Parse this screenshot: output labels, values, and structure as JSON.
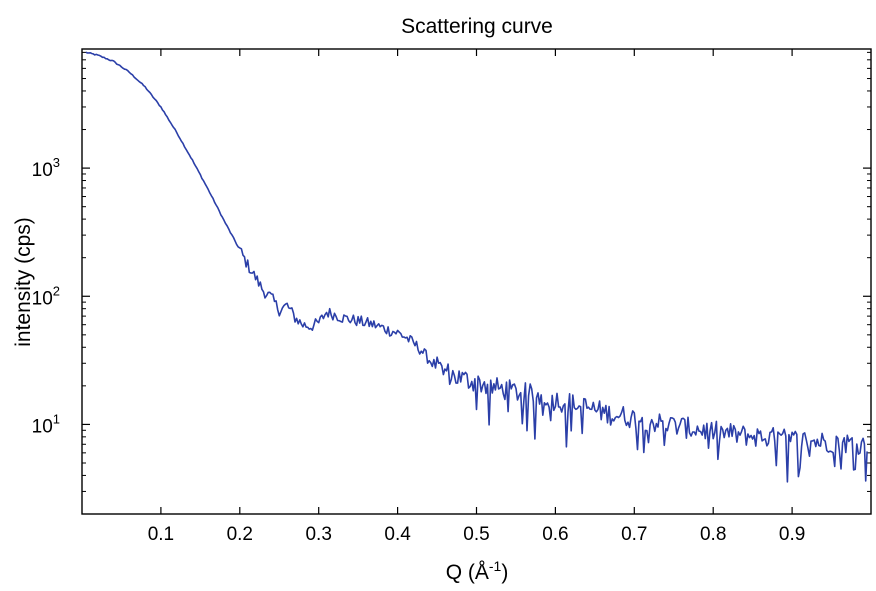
{
  "chart_data": {
    "type": "line",
    "title": "Scattering curve",
    "xlabel": {
      "main": "Q (Å",
      "superscript": "-1",
      "close": ")"
    },
    "ylabel": "intensity (cps)",
    "xlim": [
      0,
      1.0
    ],
    "ylim": [
      2.0,
      8500
    ],
    "yscale": "log",
    "grid": false,
    "x_ticks": [
      0.1,
      0.2,
      0.3,
      0.4,
      0.5,
      0.6,
      0.7,
      0.8,
      0.9
    ],
    "x_tick_labels": [
      "0.1",
      "0.2",
      "0.3",
      "0.4",
      "0.5",
      "0.6",
      "0.7",
      "0.8",
      "0.9"
    ],
    "y_ticks": [
      {
        "value": 10,
        "base": "10",
        "exp": "1"
      },
      {
        "value": 100,
        "base": "10",
        "exp": "2"
      },
      {
        "value": 1000,
        "base": "10",
        "exp": "3"
      }
    ],
    "series": [
      {
        "color": "#2b3fa8",
        "x": [
          0.005,
          0.02,
          0.04,
          0.06,
          0.08,
          0.1,
          0.12,
          0.14,
          0.16,
          0.18,
          0.2,
          0.21,
          0.22,
          0.23,
          0.24,
          0.25,
          0.26,
          0.27,
          0.28,
          0.29,
          0.3,
          0.31,
          0.32,
          0.33,
          0.34,
          0.35,
          0.36,
          0.37,
          0.38,
          0.39,
          0.4,
          0.41,
          0.42,
          0.43,
          0.44,
          0.45,
          0.46,
          0.47,
          0.48,
          0.49,
          0.5,
          0.51,
          0.52,
          0.53,
          0.54,
          0.55,
          0.56,
          0.57,
          0.58,
          0.59,
          0.6,
          0.61,
          0.62,
          0.63,
          0.64,
          0.65,
          0.66,
          0.67,
          0.68,
          0.69,
          0.7,
          0.71,
          0.72,
          0.73,
          0.74,
          0.75,
          0.76,
          0.77,
          0.78,
          0.79,
          0.8,
          0.81,
          0.82,
          0.83,
          0.84,
          0.85,
          0.86,
          0.87,
          0.88,
          0.89,
          0.9,
          0.91,
          0.92,
          0.93,
          0.94,
          0.95,
          0.96,
          0.97,
          0.98,
          0.99,
          0.995
        ],
        "y": [
          8000,
          7600,
          6800,
          5600,
          4300,
          3000,
          1900,
          1150,
          680,
          390,
          230,
          175,
          140,
          110,
          98,
          78,
          85,
          68,
          60,
          58,
          62,
          75,
          72,
          68,
          66,
          64,
          62,
          60,
          57,
          54,
          52,
          48,
          43,
          38,
          32,
          28,
          26,
          24,
          23,
          22,
          21.5,
          20.5,
          19.5,
          19,
          18.5,
          18,
          17.5,
          17,
          16.5,
          16,
          15.5,
          15,
          14.5,
          14,
          13.5,
          13,
          12.5,
          12,
          11.8,
          11.5,
          11.2,
          11,
          10.6,
          10.3,
          10,
          9.8,
          9.6,
          9.3,
          9.2,
          9.0,
          8.8,
          8.6,
          8.5,
          8.3,
          8.2,
          8.1,
          8.0,
          7.9,
          7.8,
          7.7,
          7.6,
          7.5,
          7.5,
          7.4,
          7.3,
          7.3,
          7.2,
          7.2,
          7.1,
          7.1,
          7.0
        ]
      }
    ]
  }
}
